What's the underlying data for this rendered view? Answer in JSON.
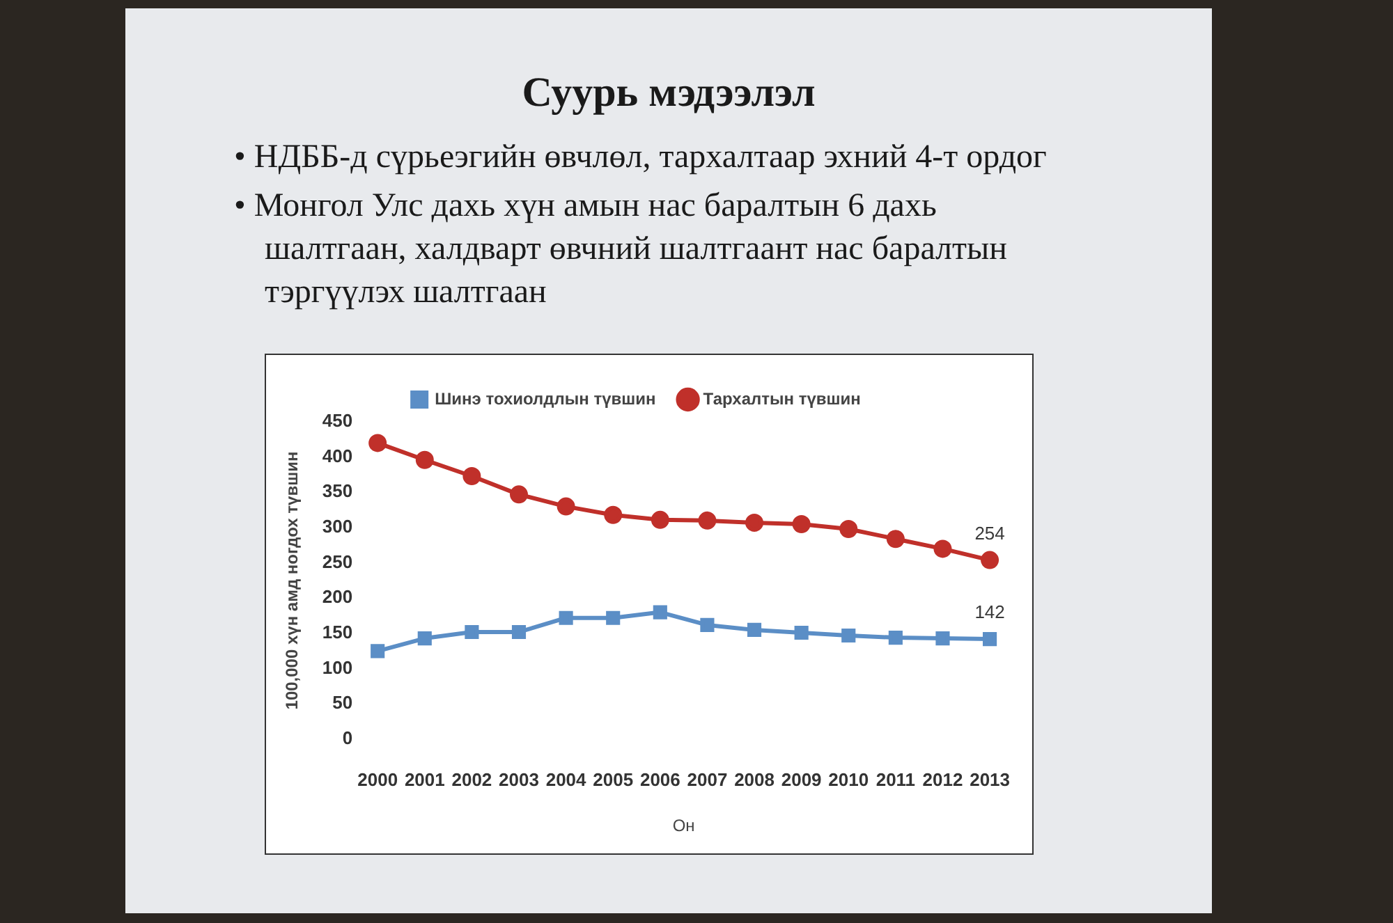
{
  "chart_data": {
    "type": "line",
    "title": "Суурь мэдээлэл",
    "annotations": [
      "• НДББ-д сүрьеэгийн өвчлөл, тархалтаар эхний 4-т ордог",
      "• Монгол Улс дахь хүн амын нас баралтын 6 дахь шалтгаан, халдварт өвчний шалтгаант нас баралтын тэргүүлэх шалтгаан"
    ],
    "xlabel": "Он",
    "ylabel": "100,000 хүн амд ногдох түвшин",
    "categories": [
      "2000",
      "2001",
      "2002",
      "2003",
      "2004",
      "2005",
      "2006",
      "2007",
      "2008",
      "2009",
      "2010",
      "2011",
      "2012",
      "2013"
    ],
    "series": [
      {
        "name": "Шинэ тохиолдлын түвшин",
        "color": "#5b8ec6",
        "marker": "square",
        "values": [
          125,
          143,
          152,
          152,
          172,
          172,
          180,
          162,
          155,
          151,
          147,
          144,
          143,
          142
        ],
        "value_labels": [
          null,
          null,
          null,
          null,
          null,
          null,
          null,
          null,
          null,
          null,
          null,
          null,
          null,
          "142"
        ]
      },
      {
        "name": "Тархалтын түвшин",
        "color": "#c0302a",
        "marker": "circle",
        "values": [
          420,
          396,
          373,
          347,
          330,
          318,
          311,
          310,
          307,
          305,
          298,
          284,
          270,
          254
        ],
        "value_labels": [
          null,
          null,
          null,
          null,
          null,
          null,
          null,
          null,
          null,
          null,
          null,
          null,
          null,
          "254"
        ]
      }
    ],
    "ylim": [
      0,
      450
    ],
    "yticks": [
      0,
      50,
      100,
      150,
      200,
      250,
      300,
      350,
      400,
      450
    ],
    "grid": false,
    "legend": "top",
    "line_style": "solid"
  }
}
